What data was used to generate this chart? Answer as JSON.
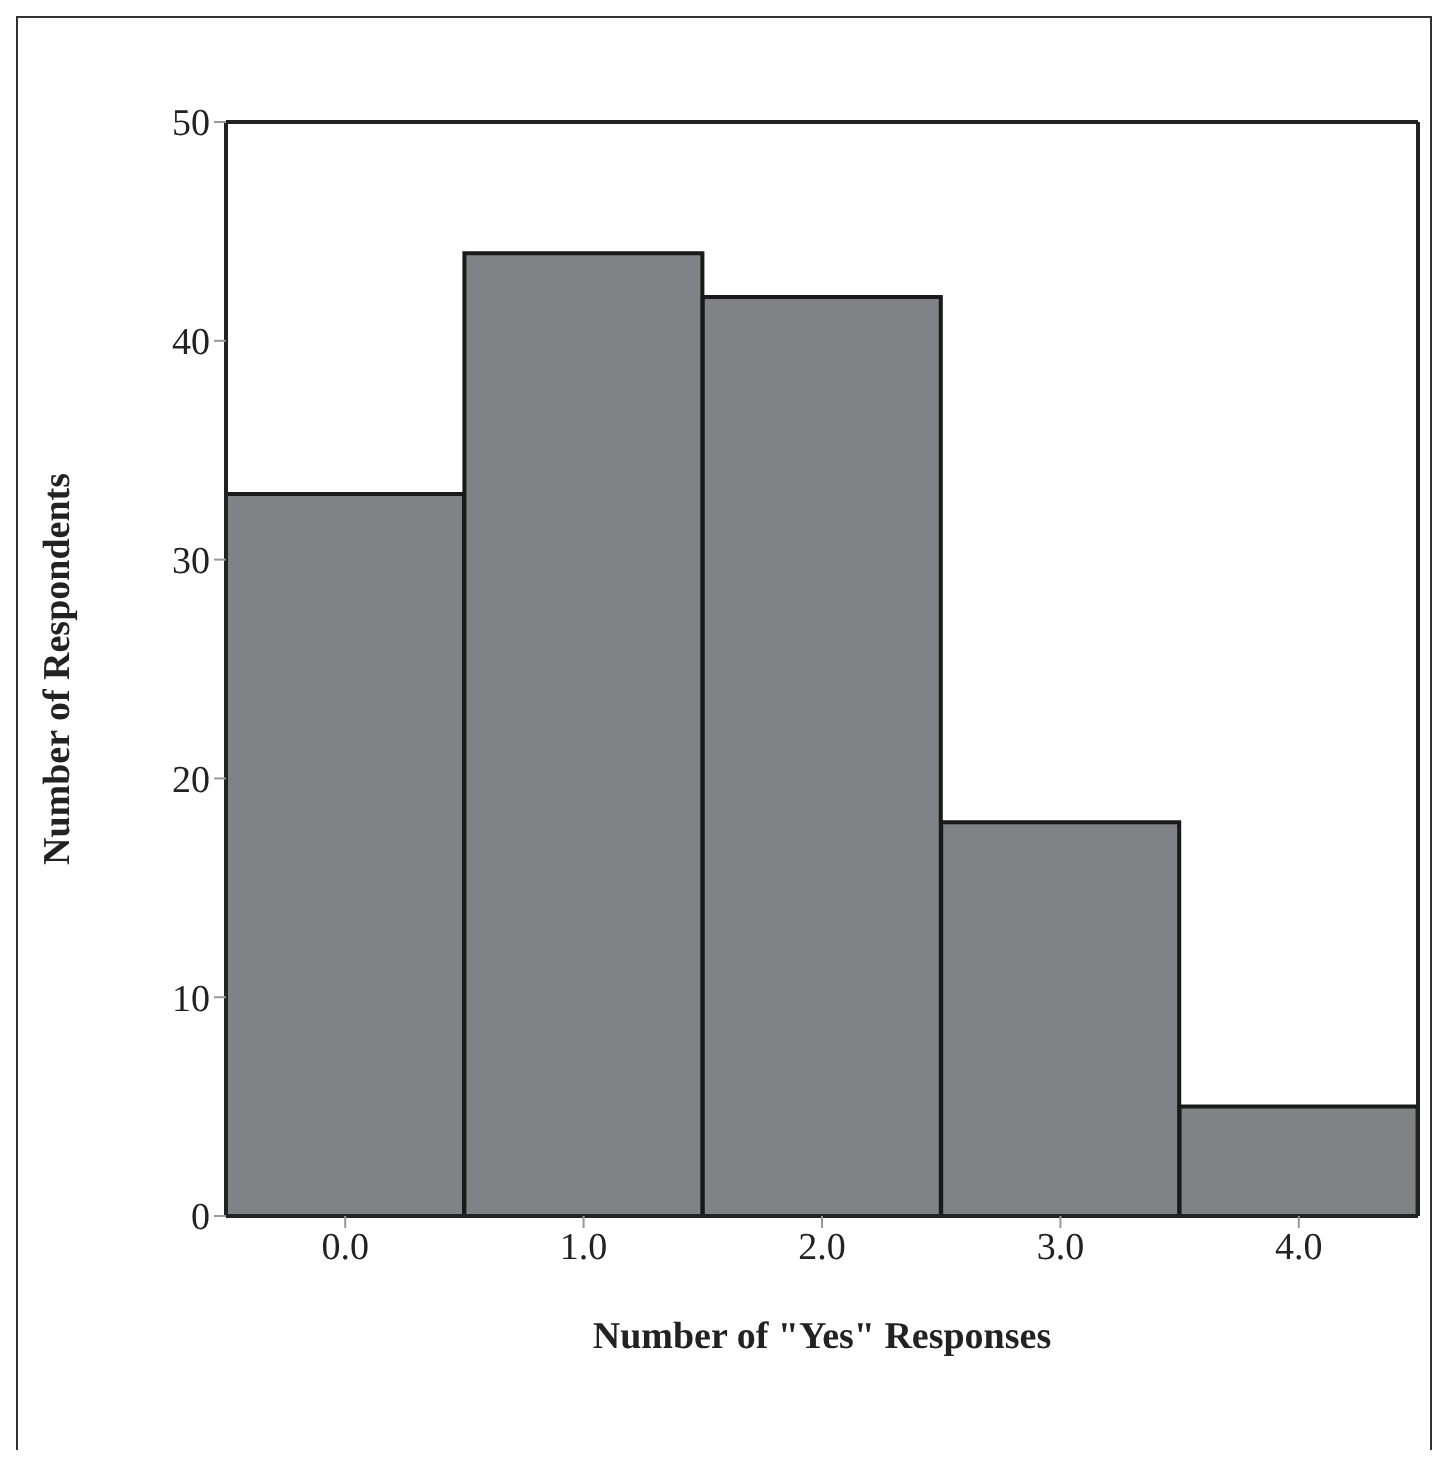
{
  "chart_data": {
    "type": "histogram",
    "xlabel": "Number of \"Yes\" Responses",
    "ylabel": "Number of Respondents",
    "bins": [
      -0.5,
      0.5,
      1.5,
      2.5,
      3.5,
      4.5
    ],
    "values": [
      33,
      44,
      42,
      18,
      5
    ],
    "color": "#818286",
    "xlim": [
      -0.5,
      4.5
    ],
    "xticks": [
      {
        "value": 0,
        "label": "0.0"
      },
      {
        "value": 1,
        "label": "1.0"
      },
      {
        "value": 2,
        "label": "2.0"
      },
      {
        "value": 3,
        "label": "3.0"
      },
      {
        "value": 4,
        "label": "4.0"
      }
    ],
    "ylim": [
      0,
      50
    ],
    "yticks": [
      0,
      10,
      20,
      30,
      40,
      50
    ],
    "grid": false,
    "legend": false
  }
}
